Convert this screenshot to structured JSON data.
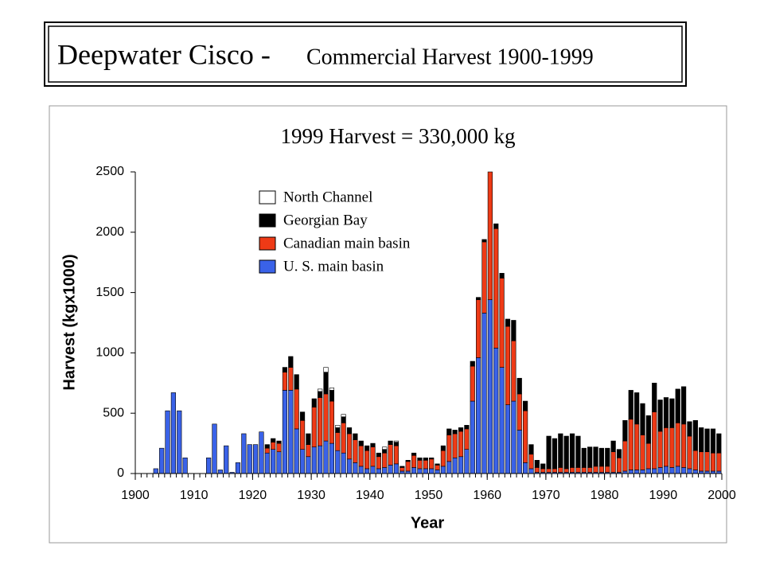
{
  "chart_data": {
    "type": "stacked_bar",
    "title": "Deepwater Cisco -",
    "subtitle": "Commercial Harvest 1900-1999",
    "annotation": "1999 Harvest = 330,000 kg",
    "xlabel": "Year",
    "ylabel": "Harvest (kgx1000)",
    "xlim": [
      1900,
      2000
    ],
    "xticks": [
      1900,
      1910,
      1920,
      1930,
      1940,
      1950,
      1960,
      1970,
      1980,
      1990,
      2000
    ],
    "ylim": [
      0,
      2500
    ],
    "yticks": [
      0,
      500,
      1000,
      1500,
      2000,
      2500
    ],
    "legend": "upper left",
    "x": [
      1900,
      1901,
      1902,
      1903,
      1904,
      1905,
      1906,
      1907,
      1908,
      1909,
      1910,
      1911,
      1912,
      1913,
      1914,
      1915,
      1916,
      1917,
      1918,
      1919,
      1920,
      1921,
      1922,
      1923,
      1924,
      1925,
      1926,
      1927,
      1928,
      1929,
      1930,
      1931,
      1932,
      1933,
      1934,
      1935,
      1936,
      1937,
      1938,
      1939,
      1940,
      1941,
      1942,
      1943,
      1944,
      1945,
      1946,
      1947,
      1948,
      1949,
      1950,
      1951,
      1952,
      1953,
      1954,
      1955,
      1956,
      1957,
      1958,
      1959,
      1960,
      1961,
      1962,
      1963,
      1964,
      1965,
      1966,
      1967,
      1968,
      1969,
      1970,
      1971,
      1972,
      1973,
      1974,
      1975,
      1976,
      1977,
      1978,
      1979,
      1980,
      1981,
      1982,
      1983,
      1984,
      1985,
      1986,
      1987,
      1988,
      1989,
      1990,
      1991,
      1992,
      1993,
      1994,
      1995,
      1996,
      1997,
      1998,
      1999
    ],
    "series": [
      {
        "name": "U. S. main basin",
        "color": "#3a62e8",
        "values": [
          0,
          0,
          0,
          40,
          210,
          520,
          670,
          520,
          130,
          0,
          0,
          0,
          130,
          410,
          30,
          230,
          10,
          90,
          330,
          240,
          240,
          345,
          170,
          200,
          180,
          690,
          690,
          370,
          200,
          140,
          220,
          230,
          270,
          250,
          190,
          170,
          120,
          90,
          60,
          40,
          60,
          40,
          50,
          70,
          80,
          20,
          20,
          50,
          40,
          40,
          40,
          30,
          60,
          100,
          130,
          140,
          200,
          600,
          960,
          1330,
          1440,
          1040,
          880,
          570,
          600,
          360,
          90,
          40,
          10,
          10,
          10,
          10,
          10,
          10,
          10,
          10,
          10,
          10,
          10,
          10,
          10,
          10,
          10,
          20,
          30,
          30,
          30,
          40,
          40,
          50,
          60,
          50,
          60,
          50,
          40,
          30,
          20,
          20,
          20,
          20
        ]
      },
      {
        "name": "Canadian main basin",
        "color": "#ee3a16",
        "values": [
          0,
          0,
          0,
          0,
          0,
          0,
          0,
          0,
          0,
          0,
          0,
          0,
          0,
          0,
          0,
          0,
          0,
          0,
          0,
          0,
          0,
          0,
          40,
          60,
          70,
          150,
          190,
          330,
          240,
          100,
          330,
          400,
          390,
          350,
          150,
          250,
          210,
          190,
          170,
          150,
          160,
          100,
          120,
          170,
          150,
          30,
          80,
          100,
          70,
          70,
          80,
          40,
          130,
          220,
          200,
          210,
          170,
          290,
          480,
          590,
          1060,
          990,
          740,
          650,
          500,
          300,
          430,
          120,
          40,
          30,
          30,
          30,
          40,
          30,
          40,
          40,
          40,
          40,
          50,
          50,
          50,
          170,
          120,
          250,
          420,
          380,
          290,
          210,
          470,
          300,
          320,
          330,
          360,
          360,
          270,
          160,
          160,
          160,
          150,
          150
        ]
      },
      {
        "name": "Georgian Bay",
        "color": "#000000",
        "values": [
          0,
          0,
          0,
          0,
          0,
          0,
          0,
          0,
          0,
          0,
          0,
          0,
          0,
          0,
          0,
          0,
          0,
          0,
          0,
          0,
          0,
          0,
          30,
          30,
          20,
          40,
          90,
          120,
          70,
          90,
          70,
          50,
          180,
          90,
          40,
          50,
          50,
          50,
          40,
          40,
          30,
          30,
          30,
          30,
          30,
          10,
          10,
          20,
          20,
          20,
          10,
          10,
          40,
          50,
          30,
          30,
          30,
          40,
          20,
          20,
          0,
          40,
          40,
          60,
          170,
          130,
          80,
          80,
          60,
          40,
          270,
          250,
          280,
          270,
          280,
          260,
          160,
          170,
          160,
          150,
          150,
          90,
          70,
          170,
          240,
          260,
          260,
          230,
          240,
          260,
          250,
          240,
          280,
          310,
          120,
          250,
          200,
          190,
          200,
          160
        ]
      },
      {
        "name": "North Channel",
        "color": "#ffffff",
        "values": [
          0,
          0,
          0,
          0,
          0,
          0,
          0,
          0,
          0,
          0,
          0,
          0,
          0,
          0,
          0,
          0,
          0,
          0,
          0,
          0,
          0,
          0,
          0,
          0,
          0,
          0,
          0,
          0,
          0,
          0,
          0,
          20,
          40,
          20,
          20,
          20,
          0,
          0,
          0,
          0,
          0,
          0,
          20,
          0,
          10,
          0,
          0,
          0,
          0,
          0,
          0,
          0,
          0,
          0,
          0,
          0,
          0,
          0,
          0,
          0,
          0,
          0,
          0,
          0,
          0,
          0,
          0,
          0,
          0,
          0,
          0,
          0,
          0,
          0,
          0,
          0,
          0,
          0,
          0,
          0,
          0,
          0,
          0,
          0,
          0,
          0,
          0,
          0,
          0,
          0,
          0,
          0,
          0,
          0,
          0,
          0,
          0,
          0,
          0,
          0
        ]
      }
    ]
  }
}
